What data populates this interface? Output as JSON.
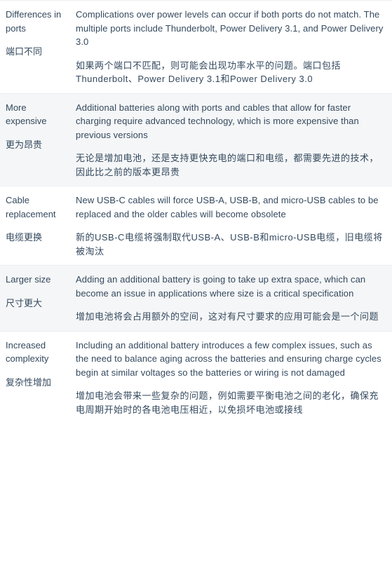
{
  "colors": {
    "text": "#34495e",
    "alt_row_bg": "#f5f6f7",
    "border": "#eceeef",
    "background": "#ffffff"
  },
  "rows": [
    {
      "alt": false,
      "label_en": "Differences in ports",
      "label_zh": "端口不同",
      "desc_en": "Complications over power levels can occur if both ports do not match. The multiple ports include   Thunderbolt, Power Delivery 3.1,   and Power Delivery 3.0",
      "desc_zh": "如果两个端口不匹配，则可能会出现功率水平的问题。端口包括Thunderbolt、Power Delivery   3.1和Power Delivery 3.0"
    },
    {
      "alt": true,
      "label_en": "More expensive",
      "label_zh": "更为昂贵",
      "desc_en": "Additional batteries along with ports and cables that allow for faster charging require advanced technology, which is more expensive than previous versions",
      "desc_zh": "无论是增加电池，还是支持更快充电的端口和电缆，都需要先进的技术，因此比之前的版本更昂贵"
    },
    {
      "alt": false,
      "label_en": "Cable replacement",
      "label_zh": "电缆更换",
      "desc_en": "New USB-C cables will force USB-A, USB-B, and micro-USB cables to be replaced and the older cables will become obsolete",
      "desc_zh": "新的USB-C电缆将强制取代USB-A、USB-B和micro-USB电缆，旧电缆将被淘汰"
    },
    {
      "alt": true,
      "label_en": "Larger size",
      "label_zh": "尺寸更大",
      "desc_en": "Adding an additional battery is going to take up extra space, which can become an issue in applications where size is a critical specification",
      "desc_zh": "增加电池将会占用额外的空间，这对有尺寸要求的应用可能会是一个问题"
    },
    {
      "alt": false,
      "label_en": "Increased complexity",
      "label_zh": "复杂性增加",
      "desc_en": "Including an additional battery introduces a few complex issues, such as the   need to balance aging across the batteries   and ensuring charge cycles begin at similar voltages so the batteries or wiring is not damaged",
      "desc_zh": "增加电池会带来一些复杂的问题，例如需要平衡电池之间的老化，确保充电周期开始时的各电池电压相近，以免损坏电池或接线"
    }
  ]
}
